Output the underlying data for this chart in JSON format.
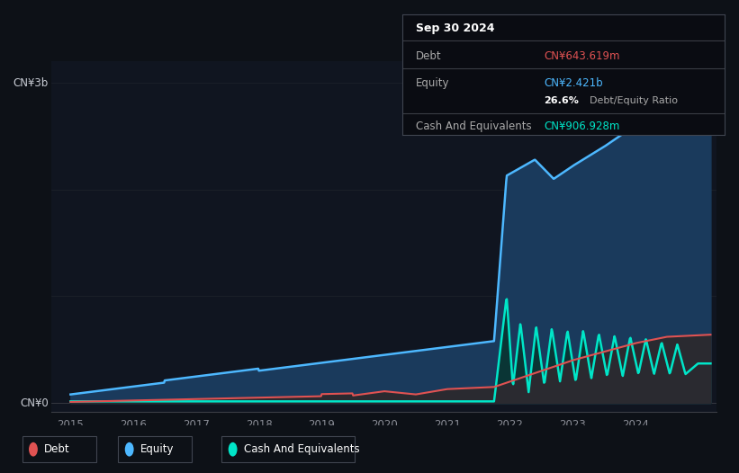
{
  "bg_color": "#0d1117",
  "plot_bg_color": "#101520",
  "title_box": {
    "date": "Sep 30 2024",
    "debt_label": "Debt",
    "debt_value": "CN¥643.619m",
    "debt_color": "#e05252",
    "equity_label": "Equity",
    "equity_value": "CN¥2.421b",
    "equity_color": "#4db8ff",
    "ratio_bold": "26.6%",
    "ratio_text": " Debt/Equity Ratio",
    "cash_label": "Cash And Equivalents",
    "cash_value": "CN¥906.928m",
    "cash_color": "#00e5c8"
  },
  "ylabel_3b": "CN¥3b",
  "ylabel_0": "CN¥0",
  "x_ticks": [
    2015,
    2016,
    2017,
    2018,
    2019,
    2020,
    2021,
    2022,
    2023,
    2024
  ],
  "equity_color": "#4db8ff",
  "equity_fill": "#1a3a5c",
  "debt_color": "#e05252",
  "debt_fill": "#4a2020",
  "cash_color": "#00e5c8",
  "cash_fill": "#0a3535",
  "grid_color": "#2a2d35",
  "legend_bg": "#161b22",
  "legend_border": "#30363d"
}
